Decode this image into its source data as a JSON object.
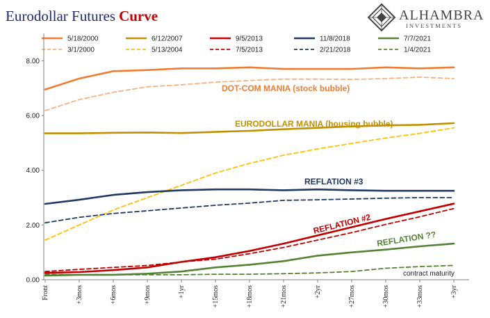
{
  "title": {
    "main": "Eurodollar Futures",
    "accent": "Curve"
  },
  "logo": {
    "name": "ALHAMBRA",
    "sub": "INVESTMENTS"
  },
  "chart_data": {
    "type": "line",
    "categories": [
      "Front",
      "+3mos",
      "+6mos",
      "+9mos",
      "+1yr",
      "+15mos",
      "+18mos",
      "+21mos",
      "+2yr",
      "+27mos",
      "+30mos",
      "+33mos",
      "+3yr"
    ],
    "ylim": [
      0,
      9
    ],
    "yticks": [
      0,
      2,
      4,
      6,
      8
    ],
    "ytick_labels": [
      "0.00",
      "2.00",
      "4.00",
      "6.00",
      "8.00"
    ],
    "grid": false,
    "legend_position": "top",
    "series": [
      {
        "name": "5/18/2000",
        "color": "#ed7d31",
        "style": "solid",
        "values": [
          6.95,
          7.35,
          7.62,
          7.66,
          7.72,
          7.72,
          7.76,
          7.7,
          7.7,
          7.7,
          7.76,
          7.72,
          7.76
        ]
      },
      {
        "name": "3/1/2000",
        "color": "#f4b183",
        "style": "dashed",
        "values": [
          6.18,
          6.58,
          6.85,
          7.05,
          7.12,
          7.22,
          7.28,
          7.33,
          7.33,
          7.32,
          7.35,
          7.4,
          7.35
        ]
      },
      {
        "name": "6/12/2007",
        "color": "#bf9000",
        "style": "solid",
        "values": [
          5.35,
          5.35,
          5.37,
          5.38,
          5.36,
          5.4,
          5.44,
          5.5,
          5.55,
          5.6,
          5.64,
          5.66,
          5.72
        ]
      },
      {
        "name": "5/13/2004",
        "color": "#ffc000",
        "style": "dashed",
        "values": [
          1.45,
          2.0,
          2.55,
          3.0,
          3.45,
          3.9,
          4.25,
          4.55,
          4.78,
          4.98,
          5.18,
          5.35,
          5.55
        ]
      },
      {
        "name": "9/5/2013",
        "color": "#c00000",
        "style": "solid",
        "values": [
          0.25,
          0.28,
          0.35,
          0.45,
          0.65,
          0.82,
          1.05,
          1.32,
          1.62,
          1.92,
          2.22,
          2.5,
          2.78
        ]
      },
      {
        "name": "7/5/2013",
        "color": "#c00000",
        "style": "dashed",
        "values": [
          0.3,
          0.38,
          0.45,
          0.52,
          0.65,
          0.75,
          0.95,
          1.18,
          1.45,
          1.72,
          2.02,
          2.3,
          2.6
        ]
      },
      {
        "name": "11/8/2018",
        "color": "#1f3864",
        "style": "solid",
        "values": [
          2.77,
          2.92,
          3.1,
          3.2,
          3.27,
          3.3,
          3.3,
          3.27,
          3.3,
          3.27,
          3.25,
          3.25,
          3.25
        ]
      },
      {
        "name": "2/21/2018",
        "color": "#1f3864",
        "style": "dashed",
        "values": [
          2.08,
          2.28,
          2.42,
          2.52,
          2.62,
          2.72,
          2.8,
          2.9,
          2.92,
          2.95,
          2.98,
          3.0,
          3.0
        ]
      },
      {
        "name": "7/7/2021",
        "color": "#548235",
        "style": "solid",
        "values": [
          0.15,
          0.18,
          0.18,
          0.22,
          0.3,
          0.45,
          0.55,
          0.68,
          0.88,
          1.0,
          1.1,
          1.22,
          1.32
        ]
      },
      {
        "name": "1/4/2021",
        "color": "#548235",
        "style": "dashed",
        "values": [
          0.2,
          0.18,
          0.18,
          0.18,
          0.18,
          0.2,
          0.2,
          0.22,
          0.25,
          0.3,
          0.42,
          0.48,
          0.52
        ]
      }
    ],
    "annotations": [
      {
        "text": "DOT-COM MANIA (stock bubble)",
        "color": "#ed7d31"
      },
      {
        "text": "EURODOLLAR MANIA (housing bubble)",
        "color": "#bf9000"
      },
      {
        "text": "REFLATION #3",
        "color": "#1f3864"
      },
      {
        "text": "REFLATION #2",
        "color": "#c00000"
      },
      {
        "text": "REFLATION ??",
        "color": "#548235"
      },
      {
        "text": "contract maturity",
        "color": "#1a1a1a"
      }
    ]
  }
}
